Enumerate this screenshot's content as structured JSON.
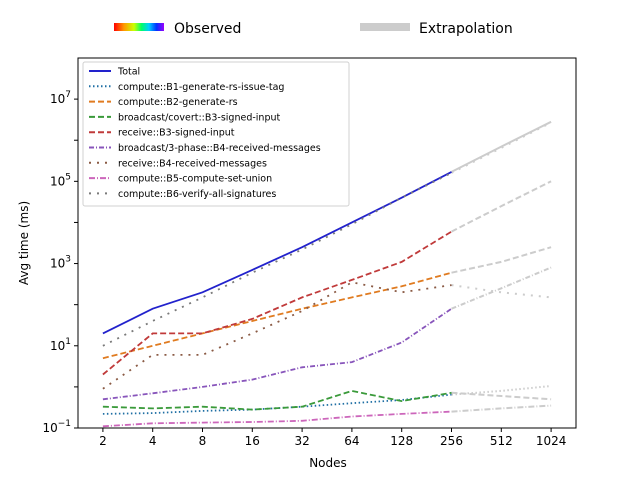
{
  "chart_data": {
    "type": "line",
    "xlabel": "Nodes",
    "ylabel": "Avg time (ms)",
    "x_scale": "log2",
    "y_scale": "log10",
    "xlim": [
      2,
      1024
    ],
    "ylim": [
      0.1,
      100000000
    ],
    "x_ticks": [
      "2",
      "4",
      "8",
      "16",
      "32",
      "64",
      "128",
      "256",
      "512",
      "1024"
    ],
    "y_ticks": [
      {
        "value": 0.1,
        "base": "10",
        "exp": "−1"
      },
      {
        "value": 10,
        "base": "10",
        "exp": "1"
      },
      {
        "value": 1000,
        "base": "10",
        "exp": "3"
      },
      {
        "value": 100000,
        "base": "10",
        "exp": "5"
      },
      {
        "value": 10000000,
        "base": "10",
        "exp": "7"
      }
    ],
    "top_legend": [
      {
        "label": "Observed",
        "style": "rainbow"
      },
      {
        "label": "Extrapolation",
        "style": "grey",
        "color": "#cccccc"
      }
    ],
    "extrapolation_color": "#cccccc",
    "series": [
      {
        "name": "Total",
        "color": "#2222cc",
        "dash": "solid",
        "observed": [
          [
            2,
            20
          ],
          [
            4,
            80
          ],
          [
            8,
            200
          ],
          [
            16,
            700
          ],
          [
            32,
            2500
          ],
          [
            64,
            10000
          ],
          [
            128,
            40000
          ],
          [
            256,
            170000
          ]
        ],
        "extrapolated": [
          [
            256,
            170000
          ],
          [
            512,
            700000
          ],
          [
            1024,
            2800000
          ]
        ]
      },
      {
        "name": "compute::B1-generate-rs-issue-tag",
        "color": "#1f6fa4",
        "dash": "dotted",
        "observed": [
          [
            2,
            0.22
          ],
          [
            4,
            0.23
          ],
          [
            8,
            0.26
          ],
          [
            16,
            0.28
          ],
          [
            32,
            0.33
          ],
          [
            64,
            0.4
          ],
          [
            128,
            0.48
          ],
          [
            256,
            0.65
          ]
        ],
        "extrapolated": [
          [
            256,
            0.65
          ],
          [
            512,
            0.8
          ],
          [
            1024,
            1.05
          ]
        ]
      },
      {
        "name": "compute::B2-generate-rs",
        "color": "#e07b20",
        "dash": "dashed",
        "observed": [
          [
            2,
            5
          ],
          [
            4,
            10
          ],
          [
            8,
            20
          ],
          [
            16,
            40
          ],
          [
            32,
            80
          ],
          [
            64,
            150
          ],
          [
            128,
            280
          ],
          [
            256,
            600
          ]
        ],
        "extrapolated": [
          [
            256,
            600
          ],
          [
            512,
            1100
          ],
          [
            1024,
            2500
          ]
        ]
      },
      {
        "name": "broadcast/covert::B3-signed-input",
        "color": "#3a9a3a",
        "dash": "dashed",
        "observed": [
          [
            2,
            0.33
          ],
          [
            4,
            0.3
          ],
          [
            8,
            0.33
          ],
          [
            16,
            0.28
          ],
          [
            32,
            0.33
          ],
          [
            64,
            0.8
          ],
          [
            128,
            0.45
          ],
          [
            256,
            0.72
          ]
        ],
        "extrapolated": [
          [
            256,
            0.72
          ],
          [
            512,
            0.6
          ],
          [
            1024,
            0.5
          ]
        ]
      },
      {
        "name": "receive::B3-signed-input",
        "color": "#c03a3a",
        "dash": "dashed",
        "observed": [
          [
            2,
            2
          ],
          [
            4,
            20
          ],
          [
            8,
            20
          ],
          [
            16,
            45
          ],
          [
            32,
            150
          ],
          [
            64,
            400
          ],
          [
            128,
            1100
          ],
          [
            256,
            6000
          ]
        ],
        "extrapolated": [
          [
            256,
            6000
          ],
          [
            512,
            25000
          ],
          [
            1024,
            100000
          ]
        ]
      },
      {
        "name": "broadcast/3-phase::B4-received-messages",
        "color": "#8855bb",
        "dash": "dashdot",
        "observed": [
          [
            2,
            0.5
          ],
          [
            4,
            0.7
          ],
          [
            8,
            1
          ],
          [
            16,
            1.5
          ],
          [
            32,
            3
          ],
          [
            64,
            4
          ],
          [
            128,
            12
          ],
          [
            256,
            80
          ]
        ],
        "extrapolated": [
          [
            256,
            80
          ],
          [
            512,
            250
          ],
          [
            1024,
            800
          ]
        ]
      },
      {
        "name": "receive::B4-received-messages",
        "color": "#8a5a44",
        "dash": "dashdotdot",
        "observed": [
          [
            2,
            0.9
          ],
          [
            4,
            6
          ],
          [
            8,
            6
          ],
          [
            16,
            20
          ],
          [
            32,
            70
          ],
          [
            64,
            350
          ],
          [
            128,
            200
          ],
          [
            256,
            300
          ]
        ],
        "extrapolated": [
          [
            256,
            300
          ],
          [
            512,
            200
          ],
          [
            1024,
            150
          ]
        ]
      },
      {
        "name": "compute::B5-compute-set-union",
        "color": "#cc66bb",
        "dash": "dashdot2",
        "observed": [
          [
            2,
            0.11
          ],
          [
            4,
            0.13
          ],
          [
            8,
            0.135
          ],
          [
            16,
            0.14
          ],
          [
            32,
            0.15
          ],
          [
            64,
            0.19
          ],
          [
            128,
            0.22
          ],
          [
            256,
            0.25
          ]
        ],
        "extrapolated": [
          [
            256,
            0.25
          ],
          [
            512,
            0.3
          ],
          [
            1024,
            0.35
          ]
        ]
      },
      {
        "name": "compute::B6-verify-all-signatures",
        "color": "#7a7a7a",
        "dash": "dashdotdot",
        "observed": [
          [
            2,
            10
          ],
          [
            4,
            40
          ],
          [
            8,
            150
          ],
          [
            16,
            600
          ],
          [
            32,
            2200
          ],
          [
            64,
            9000
          ],
          [
            128,
            40000
          ],
          [
            256,
            160000
          ]
        ],
        "extrapolated": [
          [
            256,
            160000
          ],
          [
            512,
            650000
          ],
          [
            1024,
            2700000
          ]
        ]
      }
    ]
  }
}
